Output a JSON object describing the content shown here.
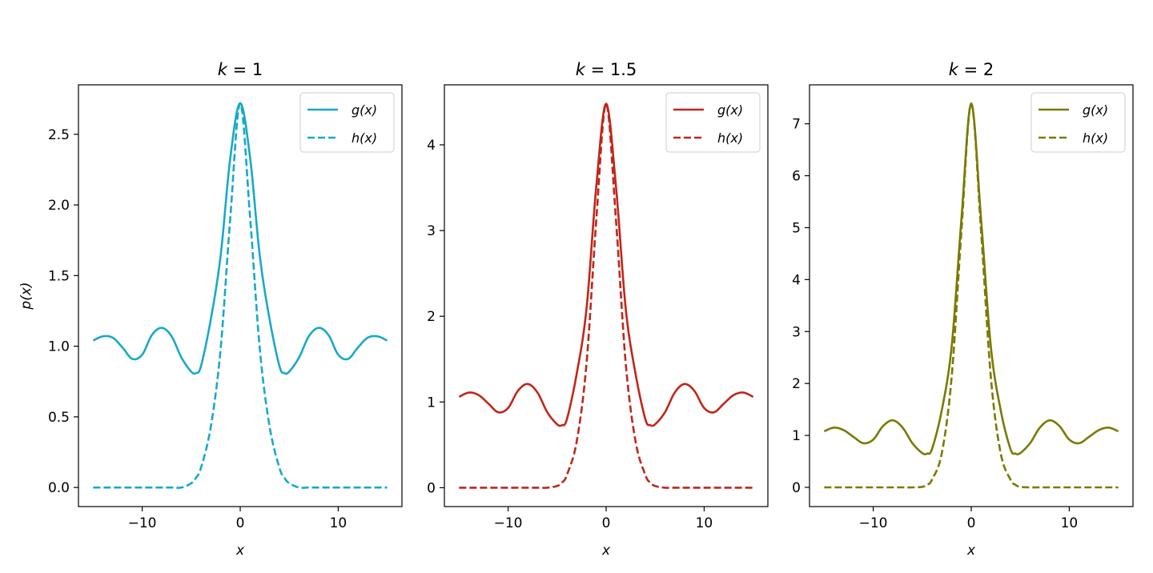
{
  "chart_data": [
    {
      "type": "line",
      "title": "k = 1",
      "k": 1,
      "xlabel": "x",
      "ylabel": "p(x)",
      "xlim": [
        -16.5,
        16.5
      ],
      "ylim": [
        -0.135,
        2.85
      ],
      "xticks": [
        -10,
        0,
        10
      ],
      "xtick_labels": [
        "−10",
        "0",
        "10"
      ],
      "yticks": [
        0.0,
        0.5,
        1.0,
        1.5,
        2.0,
        2.5
      ],
      "ytick_labels": [
        "0.0",
        "0.5",
        "1.0",
        "1.5",
        "2.0",
        "2.5"
      ],
      "color": "#17a9c9",
      "grid": false,
      "legend_position": "top-right",
      "x": [
        -15,
        -14,
        -13,
        -12,
        -11,
        -10,
        -9,
        -8,
        -7,
        -6,
        -5,
        -4.5,
        -4,
        -3,
        -2,
        -1,
        0,
        1,
        2,
        3,
        4,
        4.5,
        5,
        6,
        7,
        8,
        9,
        10,
        11,
        12,
        13,
        14,
        15
      ],
      "series": [
        {
          "name": "g(x)",
          "style": "solid",
          "values": [
            1.04,
            1.07,
            1.06,
            0.99,
            0.91,
            0.94,
            1.08,
            1.13,
            1.07,
            0.92,
            0.82,
            0.81,
            0.86,
            1.19,
            1.64,
            2.34,
            2.72,
            2.34,
            1.64,
            1.19,
            0.86,
            0.81,
            0.82,
            0.92,
            1.07,
            1.13,
            1.08,
            0.94,
            0.91,
            0.99,
            1.06,
            1.07,
            1.04
          ]
        },
        {
          "name": "h(x)",
          "style": "dashed",
          "values": [
            0.0,
            0.0,
            0.0,
            0.0,
            0.0,
            0.0,
            0.0,
            0.0,
            0.0,
            0.0,
            0.03,
            0.07,
            0.14,
            0.43,
            0.98,
            1.92,
            2.72,
            1.92,
            0.98,
            0.43,
            0.14,
            0.07,
            0.03,
            0.0,
            0.0,
            0.0,
            0.0,
            0.0,
            0.0,
            0.0,
            0.0,
            0.0,
            0.0
          ]
        }
      ]
    },
    {
      "type": "line",
      "title": "k = 1.5",
      "k": 1.5,
      "xlabel": "x",
      "ylabel": "",
      "xlim": [
        -16.5,
        16.5
      ],
      "ylim": [
        -0.22,
        4.7
      ],
      "xticks": [
        -10,
        0,
        10
      ],
      "xtick_labels": [
        "−10",
        "0",
        "10"
      ],
      "yticks": [
        0,
        1,
        2,
        3,
        4
      ],
      "ytick_labels": [
        "0",
        "1",
        "2",
        "3",
        "4"
      ],
      "color": "#c0261a",
      "grid": false,
      "legend_position": "top-right",
      "x": [
        -15,
        -14,
        -13,
        -12,
        -11,
        -10,
        -9,
        -8,
        -7,
        -6,
        -5,
        -4.5,
        -4,
        -3,
        -2,
        -1,
        0,
        1,
        2,
        3,
        4,
        4.5,
        5,
        6,
        7,
        8,
        9,
        10,
        11,
        12,
        13,
        14,
        15
      ],
      "series": [
        {
          "name": "g(x)",
          "style": "solid",
          "values": [
            1.06,
            1.11,
            1.08,
            0.98,
            0.88,
            0.93,
            1.13,
            1.21,
            1.11,
            0.88,
            0.74,
            0.73,
            0.8,
            1.33,
            2.09,
            3.52,
            4.48,
            3.52,
            2.09,
            1.33,
            0.8,
            0.73,
            0.74,
            0.88,
            1.11,
            1.21,
            1.13,
            0.93,
            0.88,
            0.98,
            1.08,
            1.11,
            1.06
          ]
        },
        {
          "name": "h(x)",
          "style": "dashed",
          "values": [
            0.0,
            0.0,
            0.0,
            0.0,
            0.0,
            0.0,
            0.0,
            0.0,
            0.0,
            0.0,
            0.02,
            0.06,
            0.15,
            0.54,
            1.45,
            3.13,
            4.48,
            3.13,
            1.45,
            0.54,
            0.15,
            0.06,
            0.02,
            0.0,
            0.0,
            0.0,
            0.0,
            0.0,
            0.0,
            0.0,
            0.0,
            0.0,
            0.0
          ]
        }
      ]
    },
    {
      "type": "line",
      "title": "k = 2",
      "k": 2,
      "xlabel": "x",
      "ylabel": "",
      "xlim": [
        -16.5,
        16.5
      ],
      "ylim": [
        -0.37,
        7.75
      ],
      "xticks": [
        -10,
        0,
        10
      ],
      "xtick_labels": [
        "−10",
        "0",
        "10"
      ],
      "yticks": [
        0,
        1,
        2,
        3,
        4,
        5,
        6,
        7
      ],
      "ytick_labels": [
        "0",
        "1",
        "2",
        "3",
        "4",
        "5",
        "6",
        "7"
      ],
      "color": "#7a7a00",
      "grid": false,
      "legend_position": "top-right",
      "x": [
        -15,
        -14,
        -13,
        -12,
        -11,
        -10,
        -9,
        -8,
        -7,
        -6,
        -5,
        -4.5,
        -4,
        -3,
        -2,
        -1,
        0,
        1,
        2,
        3,
        4,
        4.5,
        5,
        6,
        7,
        8,
        9,
        10,
        11,
        12,
        13,
        14,
        15
      ],
      "series": [
        {
          "name": "g(x)",
          "style": "solid",
          "values": [
            1.08,
            1.15,
            1.1,
            0.97,
            0.85,
            0.92,
            1.18,
            1.29,
            1.15,
            0.85,
            0.66,
            0.65,
            0.74,
            1.49,
            2.71,
            5.17,
            7.39,
            5.17,
            2.71,
            1.49,
            0.74,
            0.65,
            0.66,
            0.85,
            1.15,
            1.29,
            1.18,
            0.92,
            0.85,
            0.97,
            1.1,
            1.15,
            1.08
          ]
        },
        {
          "name": "h(x)",
          "style": "dashed",
          "values": [
            0.0,
            0.0,
            0.0,
            0.0,
            0.0,
            0.0,
            0.0,
            0.0,
            0.0,
            0.0,
            0.01,
            0.05,
            0.15,
            0.66,
            2.12,
            4.94,
            7.39,
            4.94,
            2.12,
            0.66,
            0.15,
            0.05,
            0.01,
            0.0,
            0.0,
            0.0,
            0.0,
            0.0,
            0.0,
            0.0,
            0.0,
            0.0,
            0.0
          ]
        }
      ]
    }
  ]
}
